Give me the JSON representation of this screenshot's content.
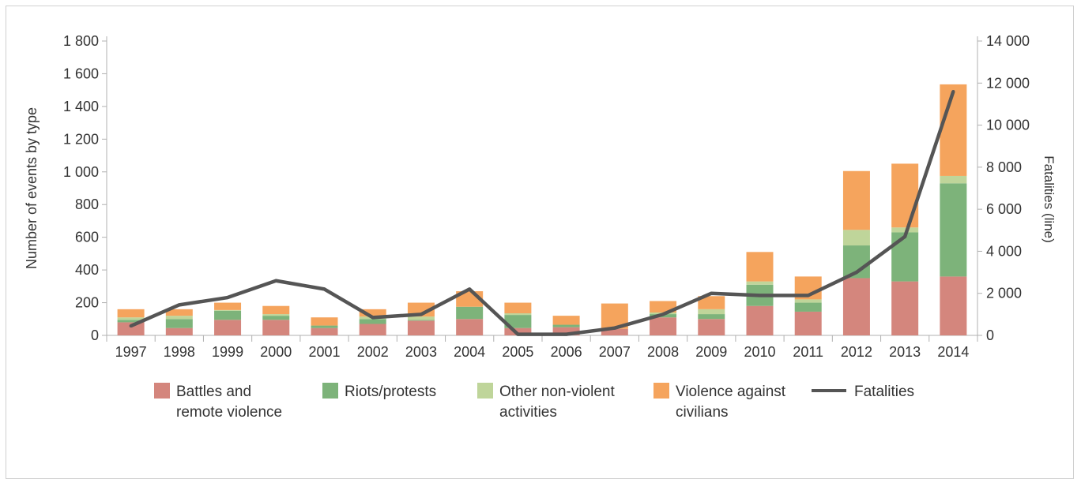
{
  "chart_data": {
    "type": "bar",
    "stacked": true,
    "categories": [
      "1997",
      "1998",
      "1999",
      "2000",
      "2001",
      "2002",
      "2003",
      "2004",
      "2005",
      "2006",
      "2007",
      "2008",
      "2009",
      "2010",
      "2011",
      "2012",
      "2013",
      "2014"
    ],
    "series": [
      {
        "name": "Battles and remote violence",
        "color": "#d4867d",
        "values": [
          80,
          45,
          95,
          95,
          45,
          70,
          90,
          100,
          45,
          50,
          40,
          110,
          100,
          180,
          145,
          350,
          330,
          360
        ]
      },
      {
        "name": "Riots/protests",
        "color": "#7db37a",
        "values": [
          15,
          55,
          55,
          25,
          15,
          30,
          5,
          75,
          80,
          15,
          0,
          20,
          30,
          130,
          55,
          200,
          300,
          570
        ]
      },
      {
        "name": "Other non-violent activities",
        "color": "#bfd59a",
        "values": [
          15,
          20,
          5,
          10,
          0,
          15,
          20,
          0,
          10,
          0,
          0,
          10,
          30,
          20,
          20,
          95,
          30,
          45
        ]
      },
      {
        "name": "Violence against civilians",
        "color": "#f5a45d",
        "values": [
          50,
          40,
          45,
          50,
          50,
          45,
          85,
          95,
          65,
          55,
          155,
          70,
          80,
          180,
          140,
          360,
          390,
          560
        ]
      }
    ],
    "line_series": {
      "name": "Fatalities",
      "color": "#555555",
      "axis": "right",
      "values": [
        450,
        1450,
        1800,
        2600,
        2200,
        850,
        1000,
        2200,
        50,
        50,
        350,
        1000,
        2000,
        1900,
        1900,
        3000,
        4700,
        11600
      ]
    },
    "ylabel": "Number of events by type",
    "ylabel_right": "Fatalities (line)",
    "ylim": [
      0,
      1800
    ],
    "ylim_right": [
      0,
      14000
    ],
    "yticks": [
      "0",
      "200",
      "400",
      "600",
      "800",
      "1 000",
      "1 200",
      "1 400",
      "1 600",
      "1 800"
    ],
    "yticks_right": [
      "0",
      "2 000",
      "4 000",
      "6 000",
      "8 000",
      "10 000",
      "12 000",
      "14 000"
    ],
    "grid": false,
    "legend_position": "bottom"
  },
  "legend": [
    {
      "label": "Battles and\nremote violence",
      "color": "#d4867d",
      "kind": "box"
    },
    {
      "label": "Riots/protests",
      "color": "#7db37a",
      "kind": "box"
    },
    {
      "label": "Other non-violent\nactivities",
      "color": "#bfd59a",
      "kind": "box"
    },
    {
      "label": "Violence against\ncivilians",
      "color": "#f5a45d",
      "kind": "box"
    },
    {
      "label": "Fatalities",
      "color": "#555555",
      "kind": "line"
    }
  ]
}
